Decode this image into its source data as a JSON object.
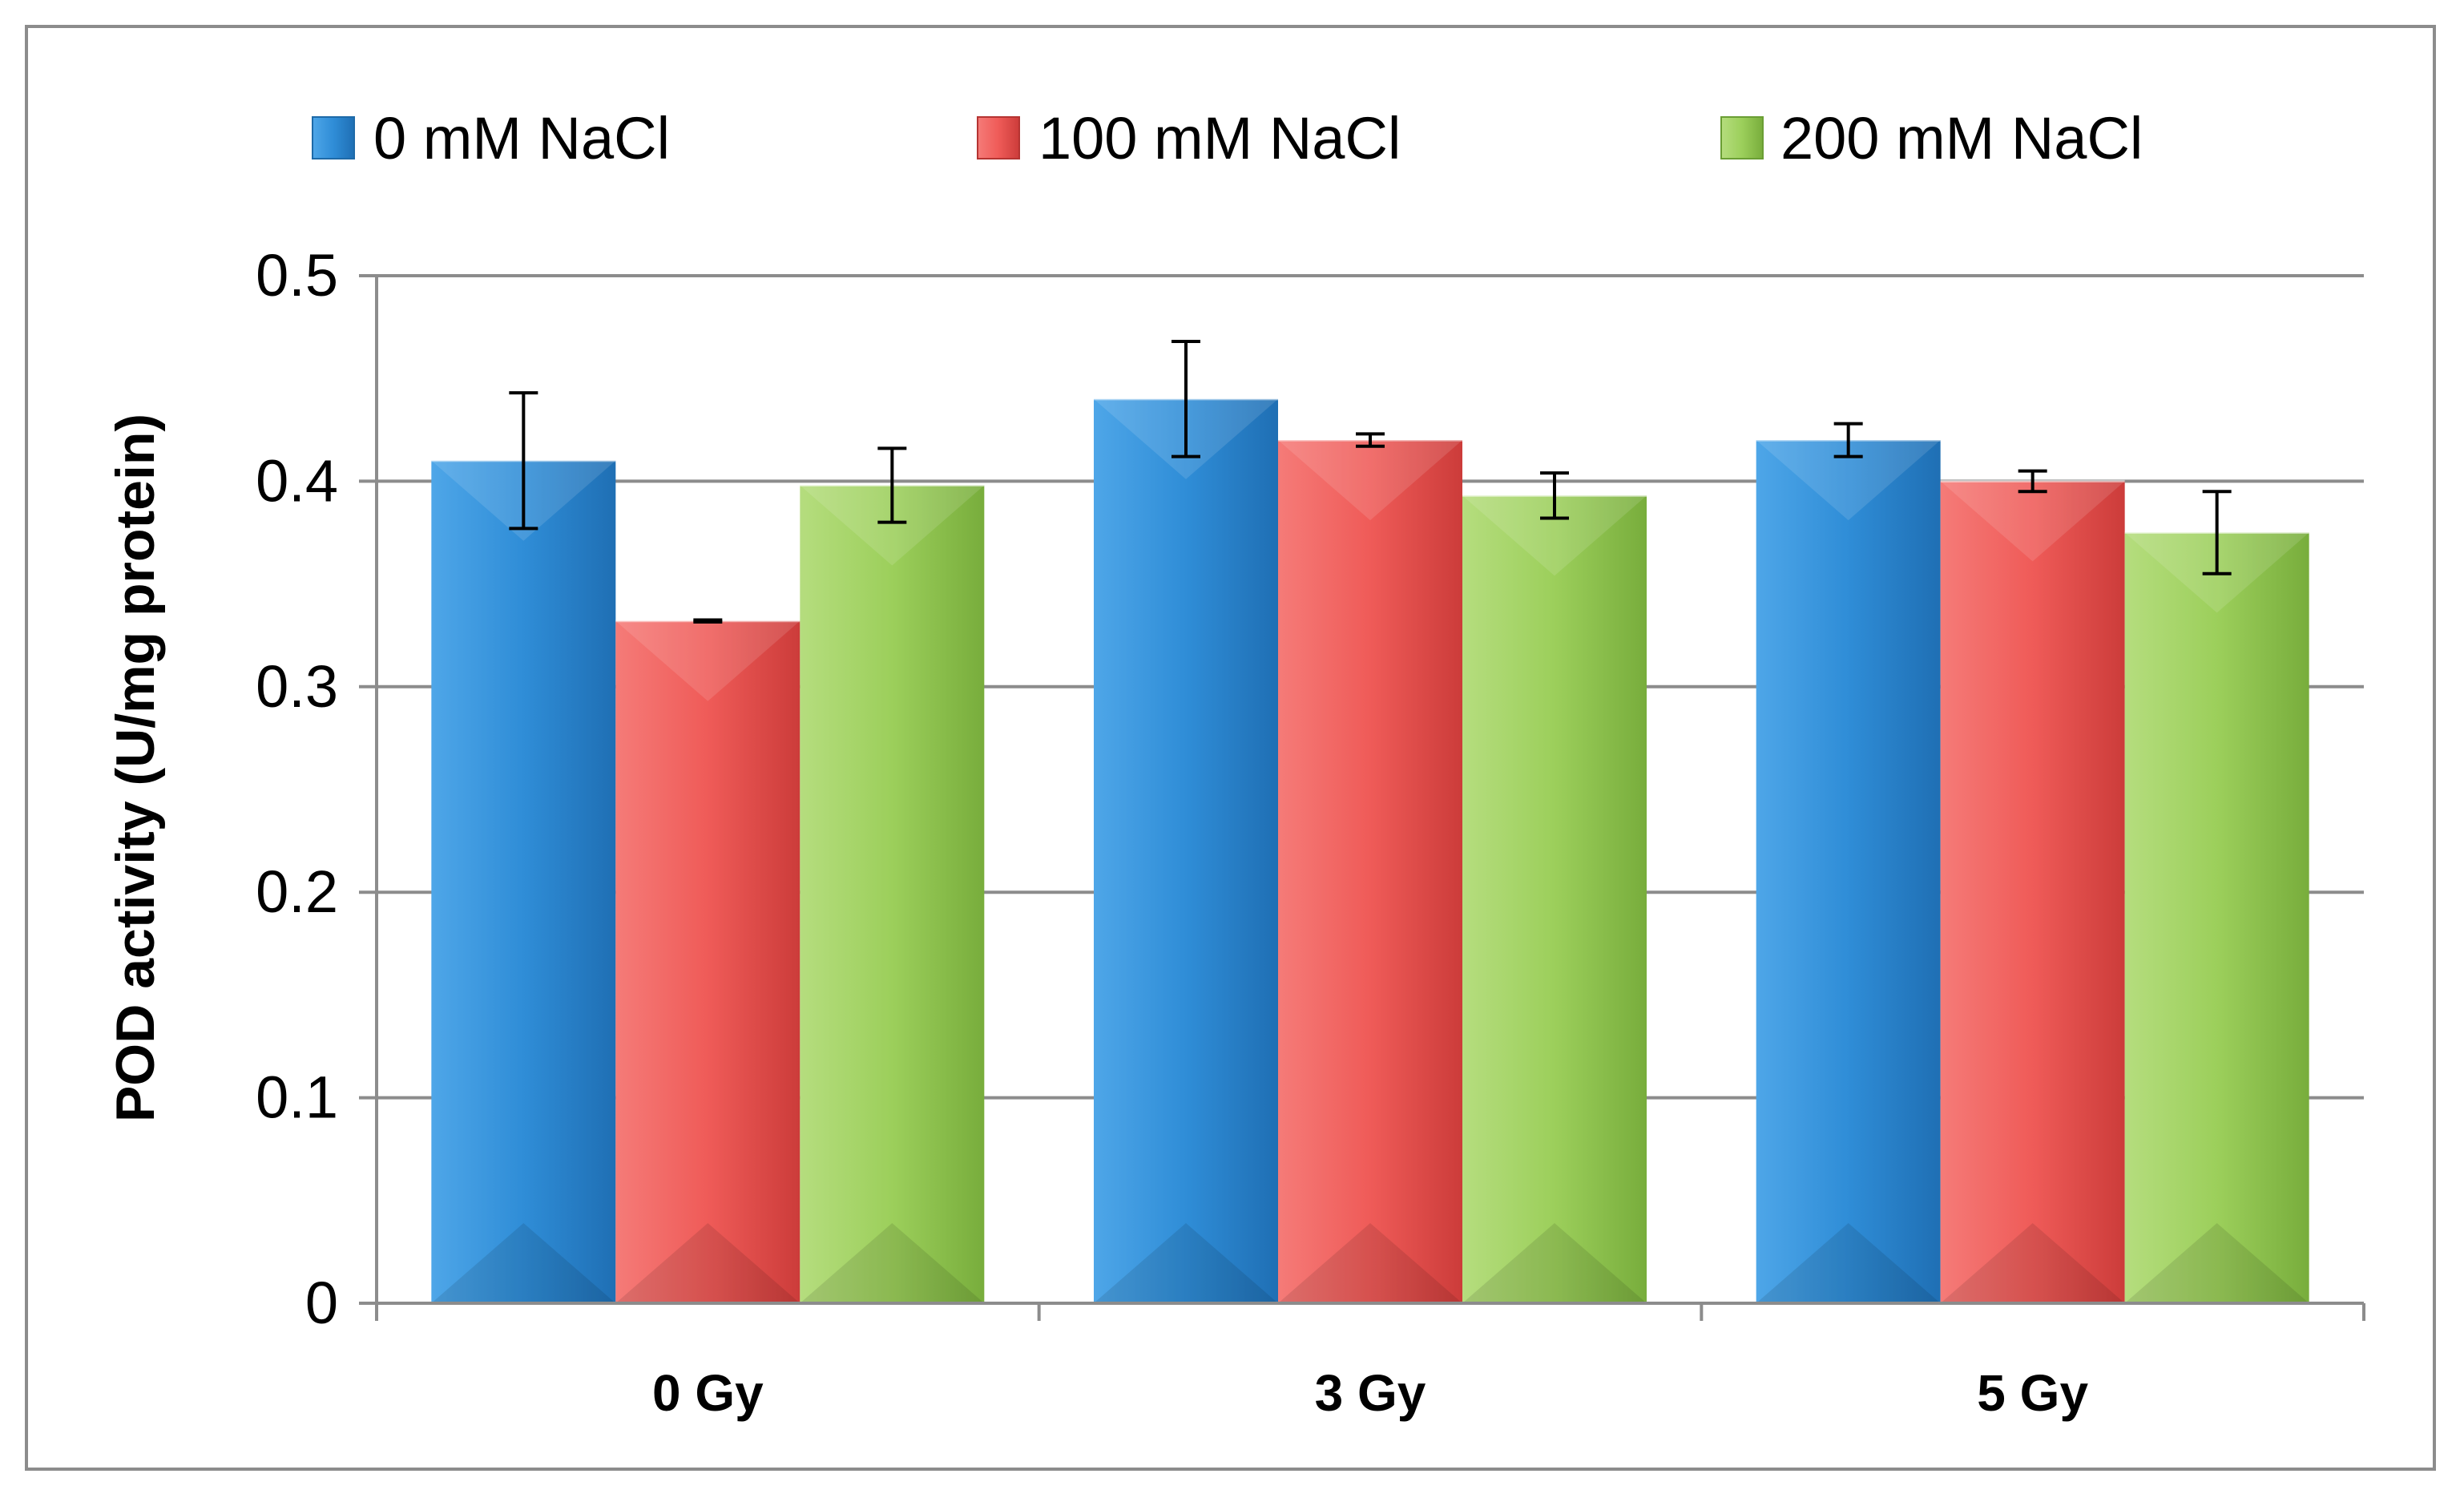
{
  "chart_data": {
    "type": "bar",
    "title": "",
    "xlabel": "",
    "ylabel": "POD activity (U/mg protein)",
    "ylim": [
      0,
      0.5
    ],
    "yticks": [
      0,
      0.1,
      0.2,
      0.3,
      0.4,
      0.5
    ],
    "ytick_labels": [
      "0",
      "0.1",
      "0.2",
      "0.3",
      "0.4",
      "0.5"
    ],
    "grid": true,
    "legend_position": "top",
    "categories": [
      "0 Gy",
      "3 Gy",
      "5 Gy"
    ],
    "series": [
      {
        "name": "0 mM NaCl",
        "color": "#2e8bd6",
        "values": [
          0.41,
          0.44,
          0.42
        ],
        "errors": [
          0.033,
          0.028,
          0.008
        ]
      },
      {
        "name": "100 mM NaCl",
        "color": "#ef5a57",
        "values": [
          0.332,
          0.42,
          0.4
        ],
        "errors": [
          0.0005,
          0.003,
          0.005
        ]
      },
      {
        "name": "200 mM NaCl",
        "color": "#9bce5a",
        "values": [
          0.398,
          0.393,
          0.375
        ],
        "errors": [
          0.018,
          0.011,
          0.02
        ]
      }
    ]
  }
}
